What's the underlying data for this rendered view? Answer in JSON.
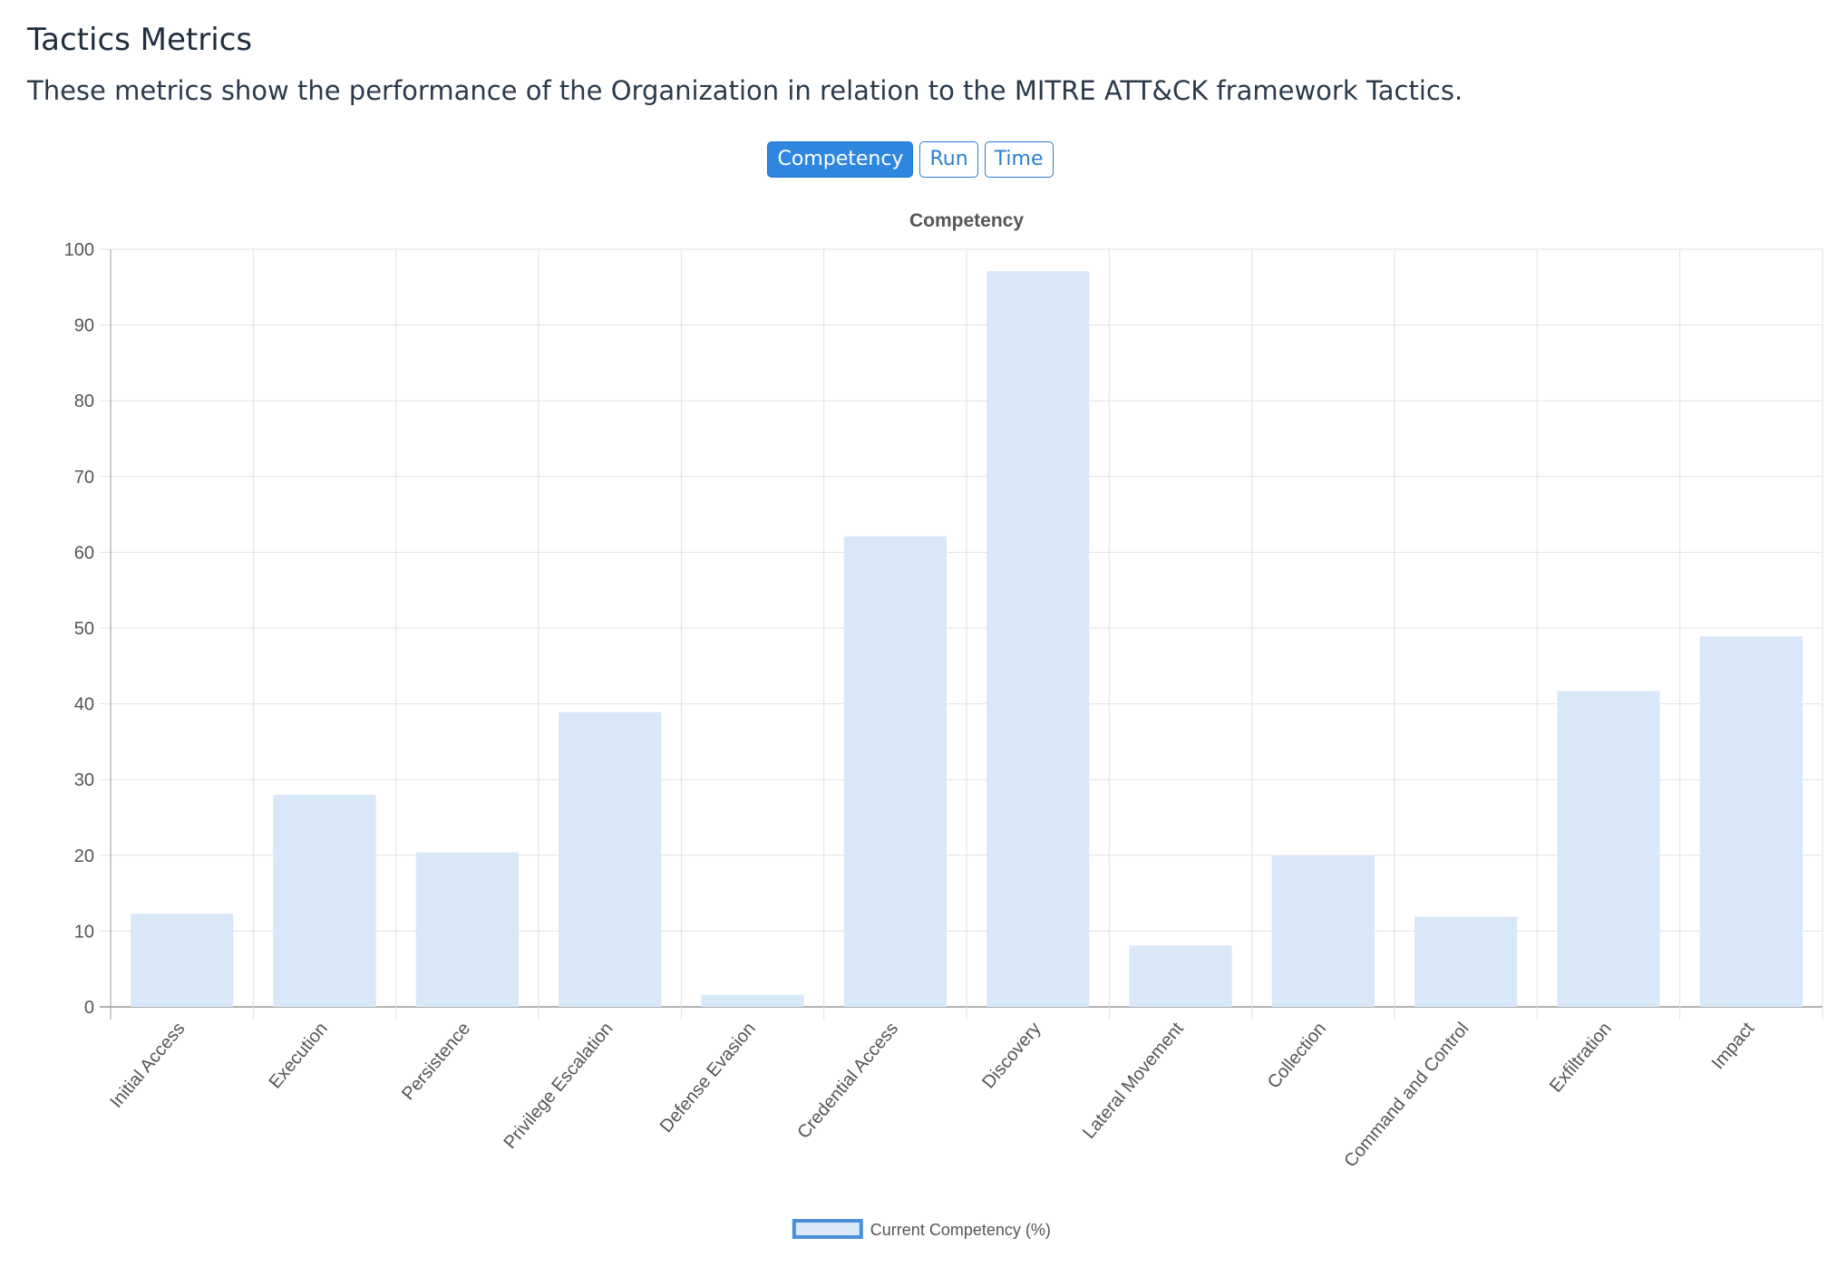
{
  "header": {
    "title": "Tactics Metrics",
    "description": "These metrics show the performance of the Organization in relation to the MITRE ATT&CK framework Tactics."
  },
  "toggle": {
    "buttons": [
      {
        "label": "Competency",
        "active": true
      },
      {
        "label": "Run",
        "active": false
      },
      {
        "label": "Time",
        "active": false
      }
    ]
  },
  "colors": {
    "accent": "#2e86de",
    "bar_fill": "#d9e8f9",
    "legend_border": "#4a90d9",
    "grid": "#e2e2e2"
  },
  "chart_data": {
    "type": "bar",
    "title": "Competency",
    "categories": [
      "Initial Access",
      "Execution",
      "Persistence",
      "Privilege Escalation",
      "Defense Evasion",
      "Credential Access",
      "Discovery",
      "Lateral Movement",
      "Collection",
      "Command and Control",
      "Exfiltration",
      "Impact"
    ],
    "series": [
      {
        "name": "Current Competency (%)",
        "values": [
          12.3,
          28,
          20.4,
          38.9,
          1.6,
          62.1,
          97.1,
          8.1,
          20,
          11.9,
          41.7,
          48.9
        ]
      }
    ],
    "ylim": [
      0,
      100
    ],
    "yticks": [
      0,
      10,
      20,
      30,
      40,
      50,
      60,
      70,
      80,
      90,
      100
    ],
    "grid": true,
    "legend": "bottom"
  }
}
